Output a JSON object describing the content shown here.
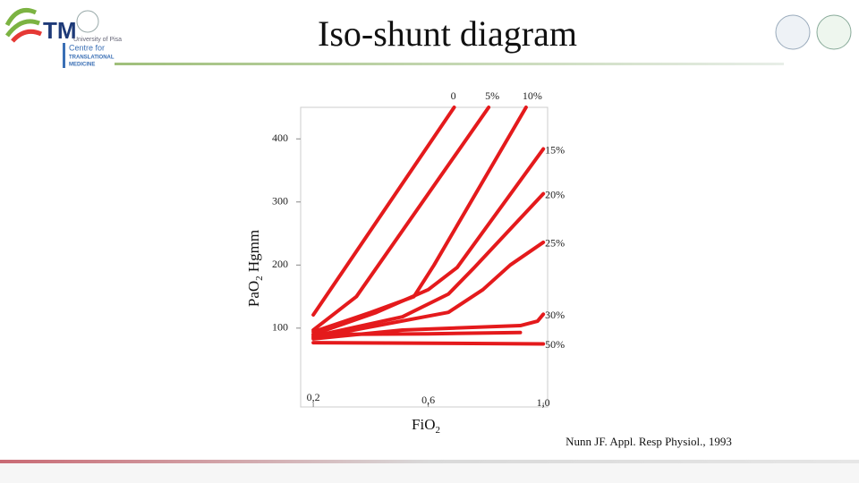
{
  "header": {
    "title": "Iso-shunt diagram",
    "logo_letters": "TM",
    "logo_university": "University of Pisa",
    "logo_centre": "Centre for",
    "logo_line2": "TRANSLATIONAL",
    "logo_line3": "MEDICINE"
  },
  "citation": "Nunn JF. Appl. Resp Physiol., 1993",
  "chart_data": {
    "type": "line",
    "xlabel": {
      "main": "Fi",
      "mid": "O",
      "sub": "2"
    },
    "ylabel": {
      "main": "Pa",
      "mid": "O",
      "sub": "2",
      "rest": " Hgmm"
    },
    "xlim": [
      0.156,
      1.015
    ],
    "ylim": [
      -25,
      450
    ],
    "xticks": [
      {
        "value": 0.2,
        "label": "0,2"
      },
      {
        "value": 0.6,
        "label": "0,6"
      },
      {
        "value": 1.0,
        "label": "1,0"
      }
    ],
    "yticks": [
      100,
      200,
      300,
      400
    ],
    "color": "#e41a1c",
    "series": [
      {
        "name": "0",
        "x": [
          0.2,
          0.69
        ],
        "values": [
          121,
          450
        ]
      },
      {
        "name": "5%",
        "x": [
          0.2,
          0.35,
          0.81
        ],
        "values": [
          97,
          150,
          450
        ]
      },
      {
        "name": "10%",
        "x": [
          0.2,
          0.4,
          0.55,
          0.62,
          0.94
        ],
        "values": [
          94,
          125,
          150,
          200,
          450
        ]
      },
      {
        "name": "15%",
        "x": [
          0.2,
          0.42,
          0.6,
          0.7,
          1.0
        ],
        "values": [
          90,
          125,
          161,
          196,
          384
        ]
      },
      {
        "name": "20%",
        "x": [
          0.2,
          0.51,
          0.67,
          0.76,
          1.0
        ],
        "values": [
          87,
          118,
          154,
          196,
          313
        ]
      },
      {
        "name": "25%",
        "x": [
          0.2,
          0.67,
          0.79,
          0.885,
          1.0
        ],
        "values": [
          85,
          125,
          161,
          200,
          236
        ]
      },
      {
        "name": "30%",
        "x": [
          0.2,
          0.51,
          0.92,
          0.98,
          1.0
        ],
        "values": [
          83,
          97,
          104,
          111,
          122
        ]
      },
      {
        "x": [
          0.2,
          0.6,
          0.92
        ],
        "values": [
          90,
          91,
          93
        ]
      },
      {
        "name": "50%",
        "x": [
          0.2,
          1.0
        ],
        "values": [
          77,
          75
        ]
      }
    ]
  }
}
